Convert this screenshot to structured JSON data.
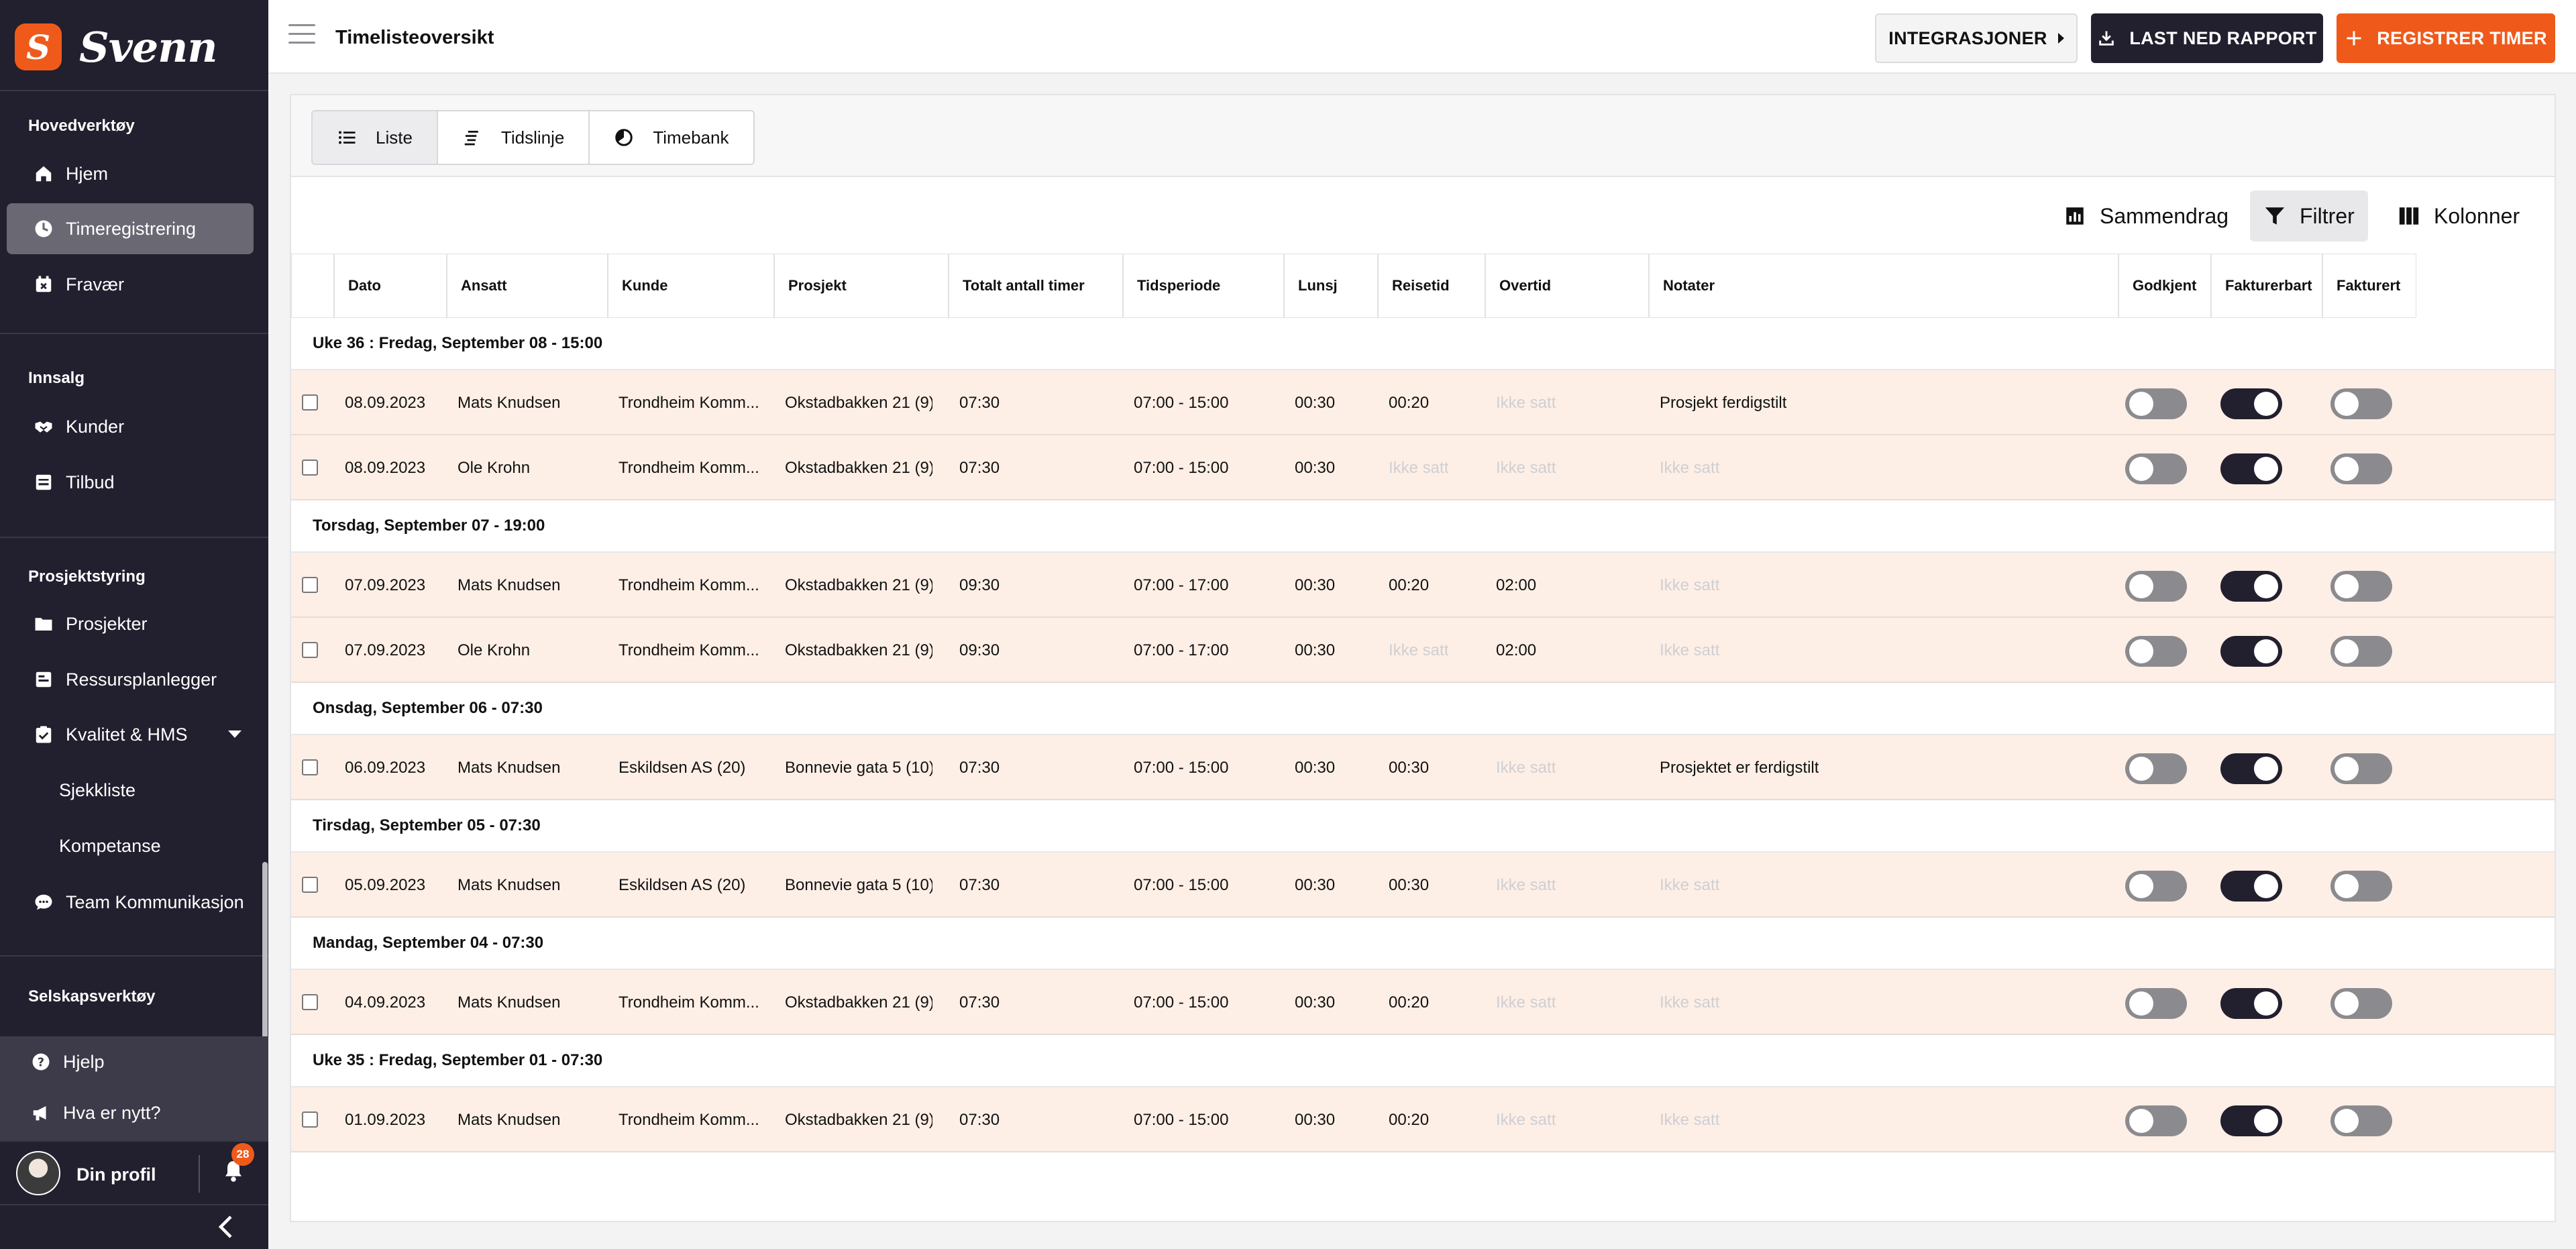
{
  "brand": {
    "logo_letter": "S",
    "name": "Svenn",
    "accent": "#ef5a1a",
    "dark": "#221f2e"
  },
  "sidebar": {
    "sections": [
      {
        "title": "Hovedverktøy",
        "items": [
          {
            "label": "Hjem",
            "icon": "home-icon"
          },
          {
            "label": "Timeregistrering",
            "icon": "clock-icon",
            "active": true
          },
          {
            "label": "Fravær",
            "icon": "calendar-x-icon"
          }
        ]
      },
      {
        "title": "Innsalg",
        "items": [
          {
            "label": "Kunder",
            "icon": "handshake-icon"
          },
          {
            "label": "Tilbud",
            "icon": "offer-icon"
          }
        ]
      },
      {
        "title": "Prosjektstyring",
        "items": [
          {
            "label": "Prosjekter",
            "icon": "folder-icon"
          },
          {
            "label": "Ressursplanlegger",
            "icon": "planner-icon"
          },
          {
            "label": "Kvalitet & HMS",
            "icon": "checklist-icon",
            "expanded": true
          }
        ],
        "sub_items": [
          "Sjekkliste",
          "Kompetanse"
        ],
        "extra": {
          "label": "Team Kommunikasjon",
          "icon": "chat-icon"
        }
      },
      {
        "title": "Selskapsverktøy",
        "items": []
      }
    ],
    "bottom": [
      {
        "label": "Hjelp",
        "icon": "help-icon"
      },
      {
        "label": "Hva er nytt?",
        "icon": "megaphone-icon"
      }
    ],
    "profile": {
      "name": "Din profil",
      "notifications": "28"
    }
  },
  "topbar": {
    "title": "Timelisteoversikt",
    "integrations_label": "INTEGRASJONER",
    "download_label": "LAST NED RAPPORT",
    "register_label": "REGISTRER TIMER"
  },
  "views": {
    "tabs": [
      "Liste",
      "Tidslinje",
      "Timebank"
    ],
    "active": "Liste"
  },
  "tools": {
    "summary": "Sammendrag",
    "filter": "Filtrer",
    "columns": "Kolonner"
  },
  "table": {
    "columns": [
      "Dato",
      "Ansatt",
      "Kunde",
      "Prosjekt",
      "Totalt antall timer",
      "Tidsperiode",
      "Lunsj",
      "Reisetid",
      "Overtid",
      "Notater",
      "Godkjent",
      "Fakturerbart",
      "Fakturert"
    ],
    "groups": [
      {
        "label": "Uke 36 : Fredag, September 08 - 15:00",
        "rows": [
          {
            "date": "08.09.2023",
            "employee": "Mats Knudsen",
            "customer": "Trondheim Komm...",
            "project": "Okstadbakken 21 (9)",
            "total": "07:30",
            "period": "07:00 - 15:00",
            "lunch": "00:30",
            "travel": "00:20",
            "overtime": "Ikke satt",
            "notes": "Prosjekt ferdigstilt",
            "approved": false,
            "billable": true,
            "billed": false
          },
          {
            "date": "08.09.2023",
            "employee": "Ole Krohn",
            "customer": "Trondheim Komm...",
            "project": "Okstadbakken 21 (9)",
            "total": "07:30",
            "period": "07:00 - 15:00",
            "lunch": "00:30",
            "travel": "Ikke satt",
            "overtime": "Ikke satt",
            "notes": "Ikke satt",
            "approved": false,
            "billable": true,
            "billed": false
          }
        ]
      },
      {
        "label": "Torsdag, September 07 - 19:00",
        "rows": [
          {
            "date": "07.09.2023",
            "employee": "Mats Knudsen",
            "customer": "Trondheim Komm...",
            "project": "Okstadbakken 21 (9)",
            "total": "09:30",
            "period": "07:00 - 17:00",
            "lunch": "00:30",
            "travel": "00:20",
            "overtime": "02:00",
            "notes": "Ikke satt",
            "approved": false,
            "billable": true,
            "billed": false
          },
          {
            "date": "07.09.2023",
            "employee": "Ole Krohn",
            "customer": "Trondheim Komm...",
            "project": "Okstadbakken 21 (9)",
            "total": "09:30",
            "period": "07:00 - 17:00",
            "lunch": "00:30",
            "travel": "Ikke satt",
            "overtime": "02:00",
            "notes": "Ikke satt",
            "approved": false,
            "billable": true,
            "billed": false
          }
        ]
      },
      {
        "label": "Onsdag, September 06 - 07:30",
        "rows": [
          {
            "date": "06.09.2023",
            "employee": "Mats Knudsen",
            "customer": "Eskildsen AS (20)",
            "project": "Bonnevie gata 5 (10)",
            "total": "07:30",
            "period": "07:00 - 15:00",
            "lunch": "00:30",
            "travel": "00:30",
            "overtime": "Ikke satt",
            "notes": "Prosjektet er ferdigstilt",
            "approved": false,
            "billable": true,
            "billed": false
          }
        ]
      },
      {
        "label": "Tirsdag, September 05 - 07:30",
        "rows": [
          {
            "date": "05.09.2023",
            "employee": "Mats Knudsen",
            "customer": "Eskildsen AS (20)",
            "project": "Bonnevie gata 5 (10)",
            "total": "07:30",
            "period": "07:00 - 15:00",
            "lunch": "00:30",
            "travel": "00:30",
            "overtime": "Ikke satt",
            "notes": "Ikke satt",
            "approved": false,
            "billable": true,
            "billed": false
          }
        ]
      },
      {
        "label": "Mandag, September 04 - 07:30",
        "rows": [
          {
            "date": "04.09.2023",
            "employee": "Mats Knudsen",
            "customer": "Trondheim Komm...",
            "project": "Okstadbakken 21 (9)",
            "total": "07:30",
            "period": "07:00 - 15:00",
            "lunch": "00:30",
            "travel": "00:20",
            "overtime": "Ikke satt",
            "notes": "Ikke satt",
            "approved": false,
            "billable": true,
            "billed": false
          }
        ]
      },
      {
        "label": "Uke 35 : Fredag, September 01 - 07:30",
        "rows": [
          {
            "date": "01.09.2023",
            "employee": "Mats Knudsen",
            "customer": "Trondheim Komm...",
            "project": "Okstadbakken 21 (9)",
            "total": "07:30",
            "period": "07:00 - 15:00",
            "lunch": "00:30",
            "travel": "00:20",
            "overtime": "Ikke satt",
            "notes": "Ikke satt",
            "approved": false,
            "billable": true,
            "billed": false
          }
        ]
      }
    ],
    "unset_text": "Ikke satt"
  }
}
